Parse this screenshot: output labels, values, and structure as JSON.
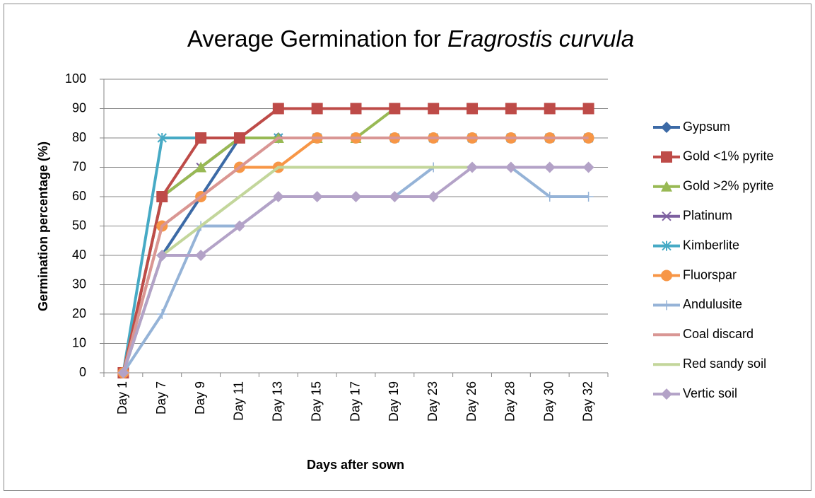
{
  "chart_data": {
    "type": "line",
    "title": {
      "text": "Average Germination for",
      "italic": "Eragrostis curvula"
    },
    "x_label": "Days after sown",
    "y_label": "Germination percentage (%)",
    "categories": [
      "Day 1",
      "Day 7",
      "Day 9",
      "Day 11",
      "Day 13",
      "Day 15",
      "Day 17",
      "Day 19",
      "Day 23",
      "Day 26",
      "Day 28",
      "Day 30",
      "Day 32"
    ],
    "ylim": [
      0,
      100
    ],
    "yticks": [
      0,
      10,
      20,
      30,
      40,
      50,
      60,
      70,
      80,
      90,
      100
    ],
    "grid": true,
    "legend": "right",
    "series": [
      {
        "name": "Gypsum",
        "color": "#3c6aa6",
        "marker": "diamond",
        "values": [
          0,
          40,
          60,
          80,
          80,
          80,
          80,
          80,
          80,
          80,
          80,
          80,
          80
        ]
      },
      {
        "name": "Platinum",
        "color": "#7d60a0",
        "marker": "x",
        "values": [
          0,
          60,
          70,
          80,
          80,
          80,
          80,
          80,
          80,
          80,
          80,
          80,
          80
        ]
      },
      {
        "name": "Kimberlite",
        "color": "#46aac5",
        "marker": "star",
        "values": [
          0,
          80,
          80,
          80,
          80,
          80,
          80,
          80,
          80,
          80,
          80,
          80,
          80
        ]
      },
      {
        "name": "Gold >2% pyrite",
        "color": "#98b954",
        "marker": "triangle",
        "values": [
          0,
          60,
          70,
          80,
          80,
          80,
          80,
          90,
          90,
          90,
          90,
          90,
          90
        ]
      },
      {
        "name": "Gold <1% pyrite",
        "color": "#be4b48",
        "marker": "square",
        "values": [
          0,
          60,
          80,
          80,
          90,
          90,
          90,
          90,
          90,
          90,
          90,
          90,
          90
        ]
      },
      {
        "name": "Fluorspar",
        "color": "#f79646",
        "marker": "circle",
        "values": [
          0,
          50,
          60,
          70,
          70,
          80,
          80,
          80,
          80,
          80,
          80,
          80,
          80
        ]
      },
      {
        "name": "Andulusite",
        "color": "#95b3d7",
        "marker": "plus",
        "values": [
          0,
          20,
          50,
          50,
          60,
          60,
          60,
          60,
          70,
          70,
          70,
          60,
          60
        ]
      },
      {
        "name": "Coal discard",
        "color": "#d99694",
        "marker": "none",
        "values": [
          0,
          50,
          60,
          70,
          80,
          80,
          80,
          80,
          80,
          80,
          80,
          80,
          80
        ]
      },
      {
        "name": "Red sandy soil",
        "color": "#c3d69b",
        "marker": "none",
        "values": [
          0,
          40,
          50,
          60,
          70,
          70,
          70,
          70,
          70,
          70,
          70,
          70,
          70
        ]
      },
      {
        "name": "Vertic soil",
        "color": "#b3a2c7",
        "marker": "diamond",
        "values": [
          0,
          40,
          40,
          50,
          60,
          60,
          60,
          60,
          60,
          70,
          70,
          70,
          70
        ]
      }
    ]
  }
}
